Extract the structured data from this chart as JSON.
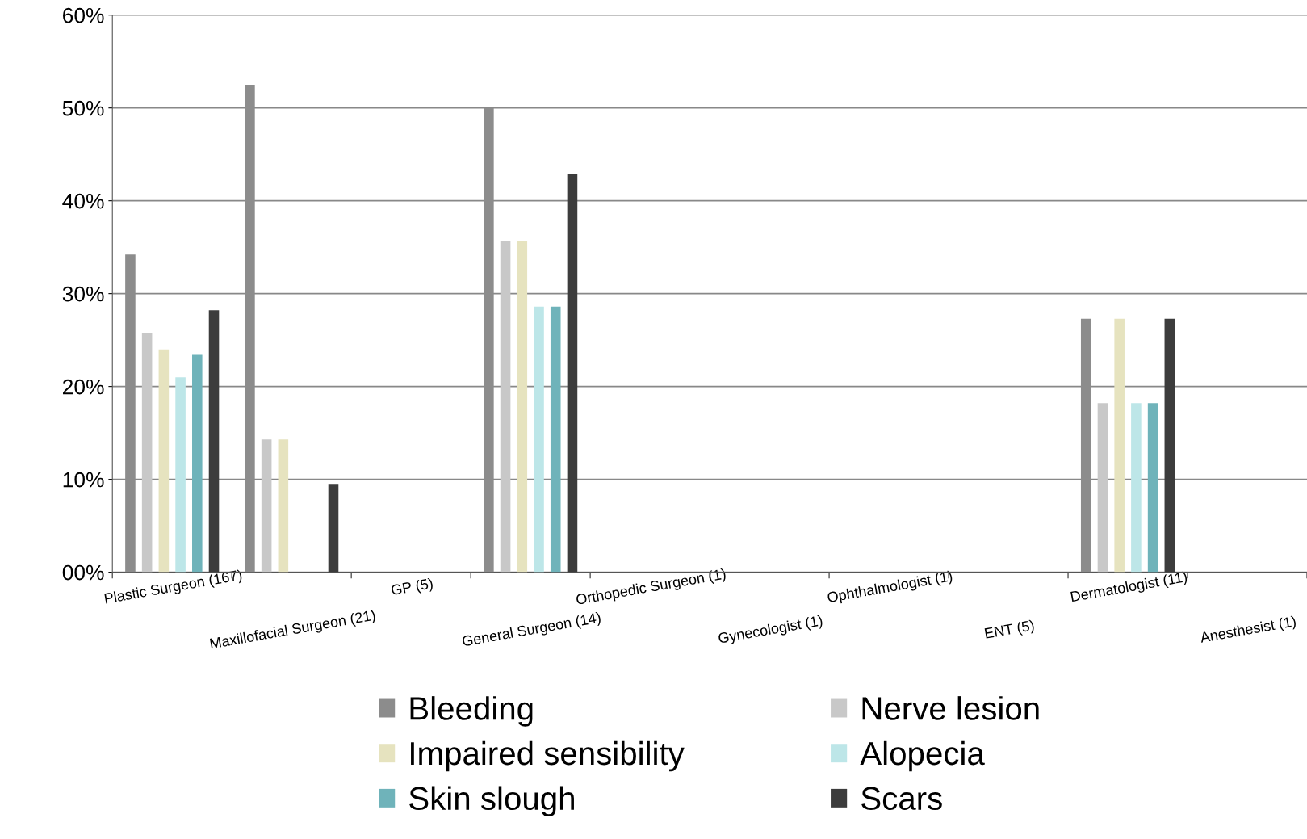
{
  "chart_data": {
    "type": "bar",
    "categories": [
      "Plastic Surgeon (167)",
      "Maxillofacial Surgeon (21)",
      "GP (5)",
      "General Surgeon (14)",
      "Orthopedic Surgeon (1)",
      "Gynecologist (1)",
      "Ophthalmologist (1)",
      "ENT (5)",
      "Dermatologist (11)",
      "Anesthesist (1)"
    ],
    "series": [
      {
        "name": "Bleeding",
        "color": "#8c8c8c",
        "values": [
          34.2,
          52.5,
          null,
          50.0,
          null,
          null,
          null,
          null,
          27.3,
          null
        ]
      },
      {
        "name": "Nerve lesion",
        "color": "#c8c8c8",
        "values": [
          25.8,
          14.3,
          null,
          35.7,
          null,
          null,
          null,
          null,
          18.2,
          null
        ]
      },
      {
        "name": "Impaired sensibility",
        "color": "#e6e3bf",
        "values": [
          24.0,
          14.3,
          null,
          35.7,
          null,
          null,
          null,
          null,
          27.3,
          null
        ]
      },
      {
        "name": "Alopecia",
        "color": "#bde6e8",
        "values": [
          21.0,
          null,
          null,
          28.6,
          null,
          null,
          null,
          null,
          18.2,
          null
        ]
      },
      {
        "name": "Skin slough",
        "color": "#6fb3ba",
        "values": [
          23.4,
          null,
          null,
          28.6,
          null,
          null,
          null,
          null,
          18.2,
          null
        ]
      },
      {
        "name": "Scars",
        "color": "#3c3c3c",
        "values": [
          28.2,
          9.5,
          null,
          42.9,
          null,
          null,
          null,
          null,
          27.3,
          null
        ]
      }
    ],
    "ylim": [
      0,
      60
    ],
    "yticks": [
      {
        "value": 0,
        "label": "00%"
      },
      {
        "value": 10,
        "label": "10%"
      },
      {
        "value": 20,
        "label": "20%"
      },
      {
        "value": 30,
        "label": "30%"
      },
      {
        "value": 40,
        "label": "40%"
      },
      {
        "value": 50,
        "label": "50%"
      },
      {
        "value": 60,
        "label": "60%"
      }
    ],
    "grid": "y",
    "legend": "bottom"
  }
}
